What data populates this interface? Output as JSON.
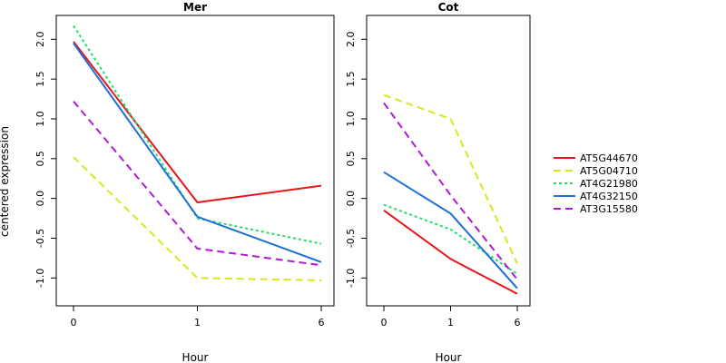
{
  "chart_data": {
    "type": "line",
    "ylabel": "centered expression",
    "xlabel": "Hour",
    "x": [
      0,
      1,
      6
    ],
    "ylim": [
      -1.35,
      2.3
    ],
    "yticks": [
      "-1.0",
      "-0.5",
      "0.0",
      "0.5",
      "1.0",
      "1.5",
      "2.0"
    ],
    "ytick_values": [
      -1.0,
      -0.5,
      0.0,
      0.5,
      1.0,
      1.5,
      2.0
    ],
    "legend_placement": "right",
    "series_styles": [
      {
        "name": "AT5G44670",
        "color": "#e8151b",
        "dash": "solid"
      },
      {
        "name": "AT5G04710",
        "color": "#d9e81a",
        "dash": "dashed"
      },
      {
        "name": "AT4G21980",
        "color": "#22dd66",
        "dash": "dotted"
      },
      {
        "name": "AT4G32150",
        "color": "#1e6fd9",
        "dash": "solid"
      },
      {
        "name": "AT3G15580",
        "color": "#b119d9",
        "dash": "dashed"
      }
    ],
    "panels": [
      {
        "title": "Mer",
        "series": [
          {
            "name": "AT5G44670",
            "values": [
              1.97,
              -0.05,
              0.16
            ]
          },
          {
            "name": "AT5G04710",
            "values": [
              0.52,
              -1.0,
              -1.03
            ]
          },
          {
            "name": "AT4G21980",
            "values": [
              2.17,
              -0.25,
              -0.57
            ]
          },
          {
            "name": "AT4G32150",
            "values": [
              1.95,
              -0.23,
              -0.8
            ]
          },
          {
            "name": "AT3G15580",
            "values": [
              1.22,
              -0.63,
              -0.84
            ]
          }
        ]
      },
      {
        "title": "Cot",
        "series": [
          {
            "name": "AT5G44670",
            "values": [
              -0.15,
              -0.76,
              -1.2
            ]
          },
          {
            "name": "AT5G04710",
            "values": [
              1.3,
              1.0,
              -0.82
            ]
          },
          {
            "name": "AT4G21980",
            "values": [
              -0.08,
              -0.39,
              -0.95
            ]
          },
          {
            "name": "AT4G32150",
            "values": [
              0.33,
              -0.19,
              -1.13
            ]
          },
          {
            "name": "AT3G15580",
            "values": [
              1.2,
              0.04,
              -1.02
            ]
          }
        ]
      }
    ]
  }
}
